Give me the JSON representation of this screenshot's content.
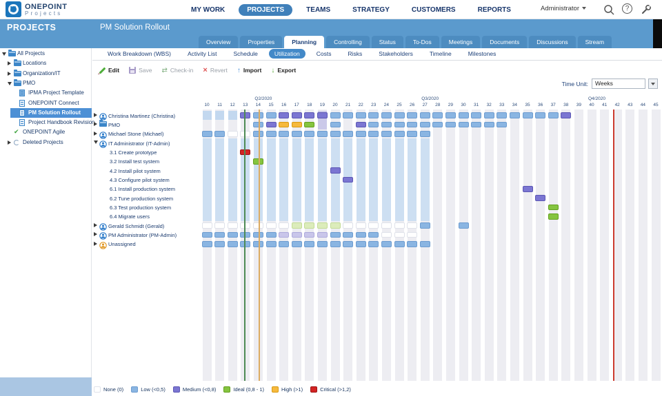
{
  "header": {
    "logo_title": "ONEPOINT",
    "logo_sub": "Projects",
    "nav": [
      {
        "label": "MY WORK",
        "active": false
      },
      {
        "label": "PROJECTS",
        "active": true
      },
      {
        "label": "TEAMS",
        "active": false
      },
      {
        "label": "STRATEGY",
        "active": false
      },
      {
        "label": "CUSTOMERS",
        "active": false
      },
      {
        "label": "REPORTS",
        "active": false
      }
    ],
    "user": "Administrator",
    "icons": [
      "search-icon",
      "help-icon",
      "tools-icon"
    ]
  },
  "banner": {
    "section": "PROJECTS",
    "project": "PM Solution Rollout"
  },
  "tabs": [
    {
      "label": "Overview",
      "active": false
    },
    {
      "label": "Properties",
      "active": false
    },
    {
      "label": "Planning",
      "active": true
    },
    {
      "label": "Controlling",
      "active": false
    },
    {
      "label": "Status",
      "active": false
    },
    {
      "label": "To-Dos",
      "active": false
    },
    {
      "label": "Meetings",
      "active": false
    },
    {
      "label": "Documents",
      "active": false
    },
    {
      "label": "Discussions",
      "active": false
    },
    {
      "label": "Stream",
      "active": false
    }
  ],
  "subtabs": [
    {
      "label": "Work Breakdown (WBS)",
      "active": false
    },
    {
      "label": "Activity List",
      "active": false
    },
    {
      "label": "Schedule",
      "active": false
    },
    {
      "label": "Utilization",
      "active": true
    },
    {
      "label": "Costs",
      "active": false
    },
    {
      "label": "Risks",
      "active": false
    },
    {
      "label": "Stakeholders",
      "active": false
    },
    {
      "label": "Timeline",
      "active": false
    },
    {
      "label": "Milestones",
      "active": false
    }
  ],
  "toolbar": {
    "buttons": [
      {
        "label": "Edit",
        "icon": "pencil-icon",
        "enabled": true
      },
      {
        "label": "Save",
        "icon": "floppy-icon",
        "enabled": false
      },
      {
        "label": "Check-in",
        "icon": "checkin-icon",
        "enabled": false
      },
      {
        "label": "Revert",
        "icon": "revert-icon",
        "enabled": false
      },
      {
        "label": "Import",
        "icon": "import-icon",
        "enabled": true
      },
      {
        "label": "Export",
        "icon": "export-icon",
        "enabled": true
      }
    ]
  },
  "time_unit": {
    "label": "Time Unit:",
    "value": "Weeks"
  },
  "sidebar": {
    "items": [
      {
        "label": "All Projects",
        "depth": 0,
        "expander": "expanded",
        "icon": "folder",
        "selected": false
      },
      {
        "label": "Locations",
        "depth": 1,
        "expander": "collapsed",
        "icon": "folder",
        "selected": false
      },
      {
        "label": "Organization/IT",
        "depth": 1,
        "expander": "collapsed",
        "icon": "folder",
        "selected": false
      },
      {
        "label": "PMO",
        "depth": 1,
        "expander": "expanded",
        "icon": "folder",
        "selected": false
      },
      {
        "label": "IPMA Project Template",
        "depth": 2,
        "expander": "none",
        "icon": "doc-filled",
        "selected": false
      },
      {
        "label": "ONEPOINT Connect",
        "depth": 2,
        "expander": "none",
        "icon": "doc",
        "selected": false
      },
      {
        "label": "PM Solution Rollout",
        "depth": 2,
        "expander": "none",
        "icon": "doc",
        "selected": true
      },
      {
        "label": "Project Handbook Revision",
        "depth": 2,
        "expander": "none",
        "icon": "doc",
        "selected": false
      },
      {
        "label": "ONEPOINT Agile",
        "depth": 1,
        "expander": "none",
        "icon": "doc-check",
        "selected": false
      },
      {
        "label": "Deleted Projects",
        "depth": 1,
        "expander": "collapsed",
        "icon": "recycle",
        "selected": false
      }
    ]
  },
  "chart_data": {
    "type": "heatmap",
    "title": "Resource utilization by week",
    "time_axis": {
      "unit": "Weeks",
      "week_from": 10,
      "week_to": 45,
      "quarters": [
        {
          "label": "Q2/2020",
          "at_week": 14
        },
        {
          "label": "Q3/2020",
          "at_week": 27
        },
        {
          "label": "Q4/2020",
          "at_week": 40
        }
      ]
    },
    "levels": {
      "none": {
        "fill": "#ffffff",
        "border": "#dfe2ea"
      },
      "low": {
        "fill": "#8ab5e2",
        "border": "#6d9cd0"
      },
      "low_pale": {
        "fill": "#c3d8ef",
        "border": "none"
      },
      "medium": {
        "fill": "#7b76d2",
        "border": "#5c57b4"
      },
      "medium_pale": {
        "fill": "#c9c6ea",
        "border": "#aeaadc"
      },
      "ideal": {
        "fill": "#85c440",
        "border": "#63a01e"
      },
      "ideal_pale": {
        "fill": "#dcecbb",
        "border": "#c3dc95"
      },
      "high": {
        "fill": "#f6b93d",
        "border": "#d89a14"
      },
      "critical": {
        "fill": "#d32424",
        "border": "#9c1212"
      }
    },
    "rows": [
      {
        "label": "Christina Martinez (Christina)",
        "icon": "person",
        "expander": "collapsed",
        "indent": false,
        "cells": [
          {
            "from": 10,
            "to": 12,
            "level": "low_pale"
          },
          {
            "week": 13,
            "level": "medium"
          },
          {
            "from": 14,
            "to": 15,
            "level": "low"
          },
          {
            "from": 16,
            "to": 19,
            "level": "medium"
          },
          {
            "from": 20,
            "to": 37,
            "level": "low"
          },
          {
            "week": 38,
            "level": "medium"
          }
        ]
      },
      {
        "label": "PMO",
        "icon": "folder",
        "expander": "collapsed",
        "indent": false,
        "cells": [
          {
            "week": 14,
            "level": "low"
          },
          {
            "week": 15,
            "level": "medium"
          },
          {
            "from": 16,
            "to": 17,
            "level": "high"
          },
          {
            "week": 18,
            "level": "ideal"
          },
          {
            "week": 20,
            "level": "low"
          },
          {
            "week": 22,
            "level": "medium"
          },
          {
            "from": 23,
            "to": 33,
            "level": "low"
          }
        ]
      },
      {
        "label": "Michael Stone (Michael)",
        "icon": "person",
        "expander": "collapsed",
        "indent": false,
        "cells": [
          {
            "from": 10,
            "to": 11,
            "level": "low"
          },
          {
            "from": 12,
            "to": 13,
            "level": "none"
          },
          {
            "from": 14,
            "to": 27,
            "level": "low"
          }
        ]
      },
      {
        "label": "IT Administrator (IT-Admin)",
        "icon": "person",
        "expander": "expanded",
        "indent": false,
        "cells": []
      },
      {
        "label": "3.1 Create prototype",
        "icon": "none",
        "expander": "none",
        "indent": true,
        "cells": [
          {
            "week": 13,
            "level": "critical"
          }
        ]
      },
      {
        "label": "3.2 Install test system",
        "icon": "none",
        "expander": "none",
        "indent": true,
        "cells": [
          {
            "week": 14,
            "level": "ideal"
          }
        ]
      },
      {
        "label": "4.2 Install pilot system",
        "icon": "none",
        "expander": "none",
        "indent": true,
        "cells": [
          {
            "week": 20,
            "level": "medium"
          }
        ]
      },
      {
        "label": "4.3 Configure pilot system",
        "icon": "none",
        "expander": "none",
        "indent": true,
        "cells": [
          {
            "week": 21,
            "level": "medium"
          }
        ]
      },
      {
        "label": "6.1 Install production system",
        "icon": "none",
        "expander": "none",
        "indent": true,
        "cells": [
          {
            "week": 35,
            "level": "medium"
          }
        ]
      },
      {
        "label": "6.2 Tune production system",
        "icon": "none",
        "expander": "none",
        "indent": true,
        "cells": [
          {
            "week": 36,
            "level": "medium"
          }
        ]
      },
      {
        "label": "6.3 Test production system",
        "icon": "none",
        "expander": "none",
        "indent": true,
        "cells": [
          {
            "week": 37,
            "level": "ideal"
          }
        ]
      },
      {
        "label": "6.4 Migrate users",
        "icon": "none",
        "expander": "none",
        "indent": true,
        "cells": [
          {
            "week": 37,
            "level": "ideal"
          }
        ]
      },
      {
        "label": "Gerald Schmidt (Gerald)",
        "icon": "person",
        "expander": "collapsed",
        "indent": false,
        "cells": [
          {
            "from": 10,
            "to": 16,
            "level": "none"
          },
          {
            "from": 17,
            "to": 20,
            "level": "ideal_pale"
          },
          {
            "from": 21,
            "to": 26,
            "level": "none"
          },
          {
            "week": 27,
            "level": "low"
          },
          {
            "week": 30,
            "level": "low"
          }
        ]
      },
      {
        "label": "PM Administrator (PM-Admin)",
        "icon": "person",
        "expander": "collapsed",
        "indent": false,
        "cells": [
          {
            "from": 10,
            "to": 15,
            "level": "low"
          },
          {
            "from": 16,
            "to": 19,
            "level": "medium_pale"
          },
          {
            "from": 20,
            "to": 23,
            "level": "low"
          },
          {
            "from": 24,
            "to": 26,
            "level": "none"
          }
        ]
      },
      {
        "label": "Unassigned",
        "icon": "person-orange",
        "expander": "collapsed",
        "indent": false,
        "cells": [
          {
            "from": 10,
            "to": 27,
            "level": "low"
          }
        ]
      }
    ],
    "background_band": {
      "row_from": 3,
      "row_to": 11,
      "week_from": 10,
      "week_to": 27,
      "color": "#cddff2"
    },
    "column_highlights": [
      {
        "week": 19,
        "row_from": 0,
        "row_to": 1,
        "color": "#cbc9e9"
      }
    ],
    "marker_lines": [
      {
        "name": "start-line",
        "week_pos": 12.95,
        "color": "#4d8a54"
      },
      {
        "name": "baseline-line",
        "week_pos": 14.1,
        "color": "#dcab62"
      },
      {
        "name": "today-line",
        "week_pos": 41.72,
        "color": "#cc3b2f"
      }
    ],
    "legend": [
      {
        "label": "None (0)",
        "level": "none"
      },
      {
        "label": "Low (<0,5)",
        "level": "low"
      },
      {
        "label": "Medium (<0,8)",
        "level": "medium"
      },
      {
        "label": "Ideal (0,8 - 1)",
        "level": "ideal"
      },
      {
        "label": "High (>1)",
        "level": "high"
      },
      {
        "label": "Critical (>1,2)",
        "level": "critical"
      }
    ]
  }
}
